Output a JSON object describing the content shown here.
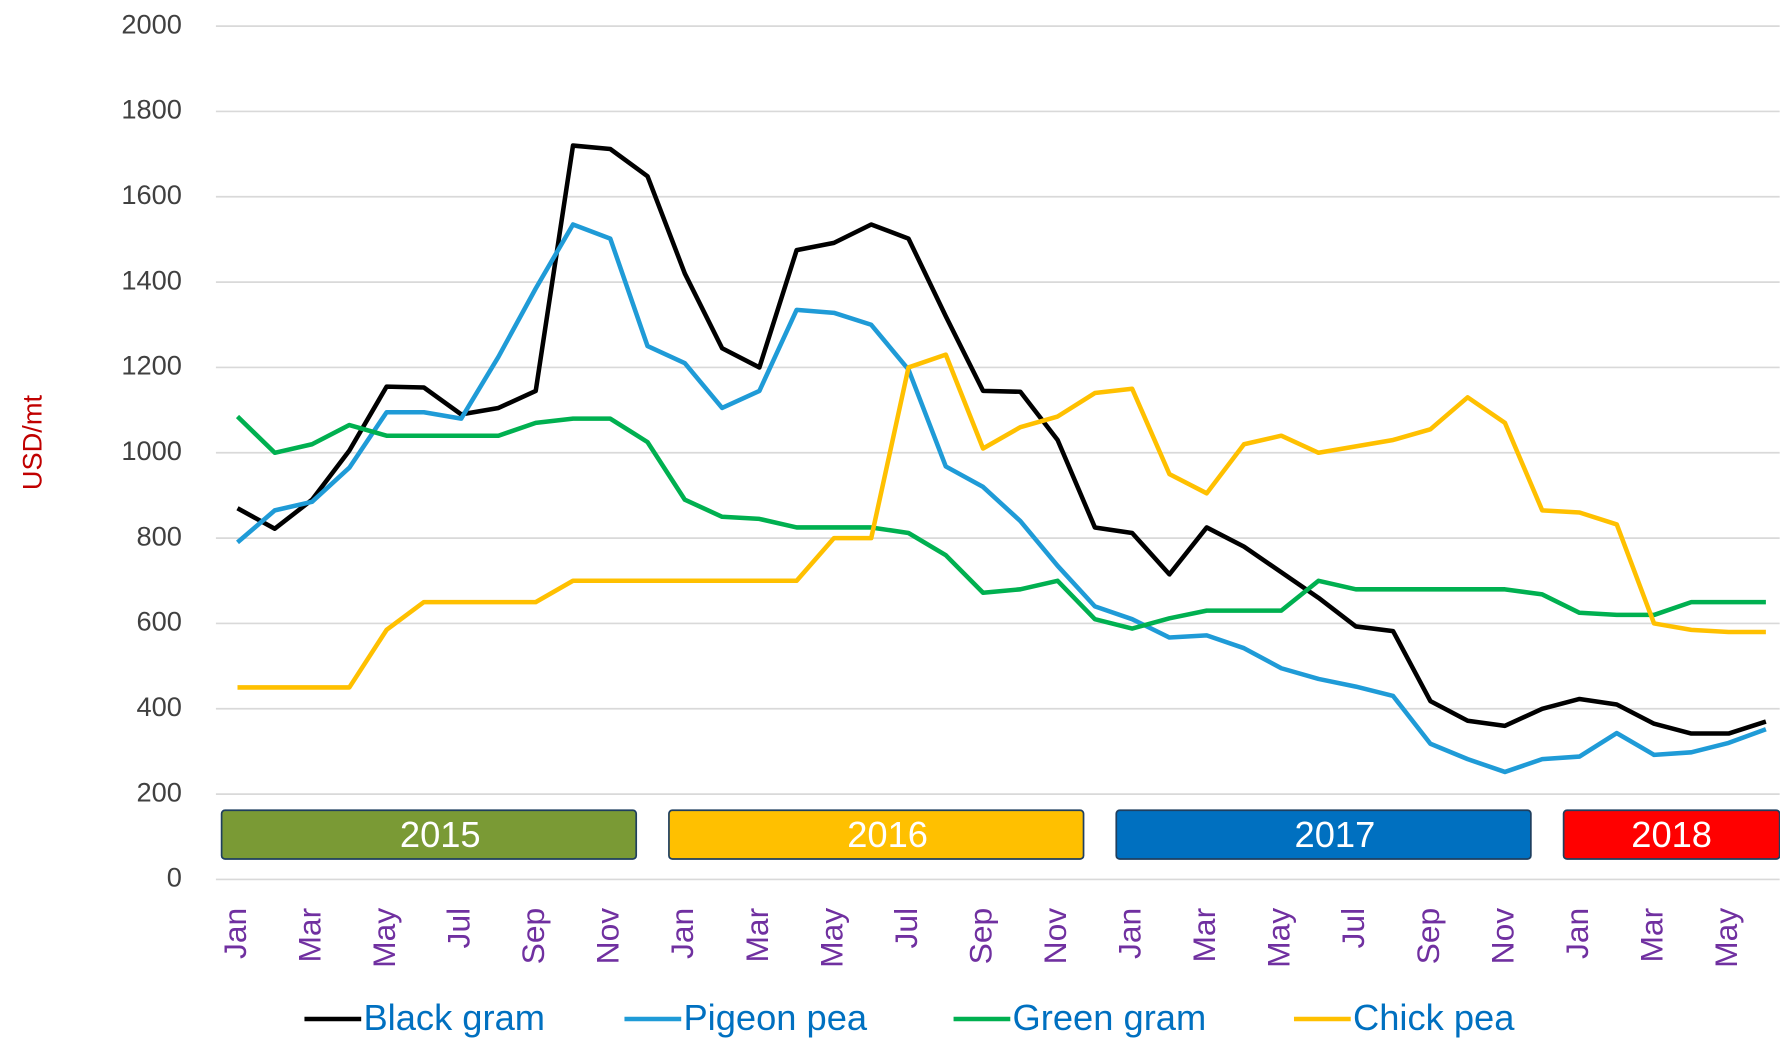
{
  "chart_data": {
    "type": "line",
    "y_label": "USD/mt",
    "ylim": [
      0,
      2000
    ],
    "yticks": [
      0,
      200,
      400,
      600,
      800,
      1000,
      1200,
      1400,
      1600,
      1800,
      2000
    ],
    "grid": true,
    "legend": "bottom",
    "categories": [
      "Jan",
      null,
      "Mar",
      null,
      "May",
      null,
      "Jul",
      null,
      "Sep",
      null,
      "Nov",
      null,
      "Jan",
      null,
      "Mar",
      null,
      "May",
      null,
      "Jul",
      null,
      "Sep",
      null,
      "Nov",
      null,
      "Jan",
      null,
      "Mar",
      null,
      "May",
      null,
      "Jul",
      null,
      "Sep",
      null,
      "Nov",
      null,
      "Jan",
      null,
      "Mar",
      null,
      "May",
      null
    ],
    "year_bands": [
      {
        "label": "2015",
        "color": "#7a9a35"
      },
      {
        "label": "2016",
        "color": "#ffc000"
      },
      {
        "label": "2017",
        "color": "#0070c0"
      },
      {
        "label": "2018",
        "color": "#ff0000"
      }
    ],
    "series": [
      {
        "name": "Black gram",
        "color": "#000000",
        "values": [
          870,
          822,
          890,
          1005,
          1155,
          1153,
          1090,
          1105,
          1145,
          1720,
          1712,
          1648,
          1420,
          1245,
          1200,
          1475,
          1492,
          1535,
          1502,
          1320,
          1145,
          1143,
          1030,
          825,
          812,
          715,
          825,
          780,
          720,
          660,
          593,
          582,
          418,
          372,
          360,
          400,
          423,
          410,
          365,
          342,
          342,
          370
        ]
      },
      {
        "name": "Pigeon pea",
        "color": "#1f9bd7",
        "values": [
          790,
          865,
          885,
          965,
          1095,
          1095,
          1080,
          1225,
          1385,
          1535,
          1502,
          1250,
          1210,
          1105,
          1145,
          1335,
          1328,
          1300,
          1195,
          968,
          920,
          840,
          735,
          640,
          610,
          567,
          572,
          542,
          495,
          470,
          452,
          430,
          318,
          282,
          252,
          282,
          288,
          343,
          292,
          298,
          320,
          352
        ]
      },
      {
        "name": "Green gram",
        "color": "#00b050",
        "values": [
          1085,
          1000,
          1020,
          1065,
          1040,
          1040,
          1040,
          1040,
          1070,
          1080,
          1080,
          1025,
          890,
          850,
          845,
          825,
          825,
          825,
          812,
          760,
          672,
          680,
          700,
          610,
          588,
          612,
          630,
          630,
          630,
          700,
          680,
          680,
          680,
          680,
          680,
          668,
          625,
          620,
          620,
          650,
          650,
          650
        ]
      },
      {
        "name": "Chick pea",
        "color": "#ffc000",
        "values": [
          450,
          450,
          450,
          450,
          585,
          650,
          650,
          650,
          650,
          700,
          700,
          700,
          700,
          700,
          700,
          700,
          800,
          800,
          1200,
          1230,
          1010,
          1060,
          1085,
          1140,
          1150,
          950,
          905,
          1020,
          1040,
          1000,
          1015,
          1030,
          1055,
          1130,
          1070,
          865,
          860,
          832,
          600,
          585,
          580,
          580
        ]
      }
    ]
  }
}
